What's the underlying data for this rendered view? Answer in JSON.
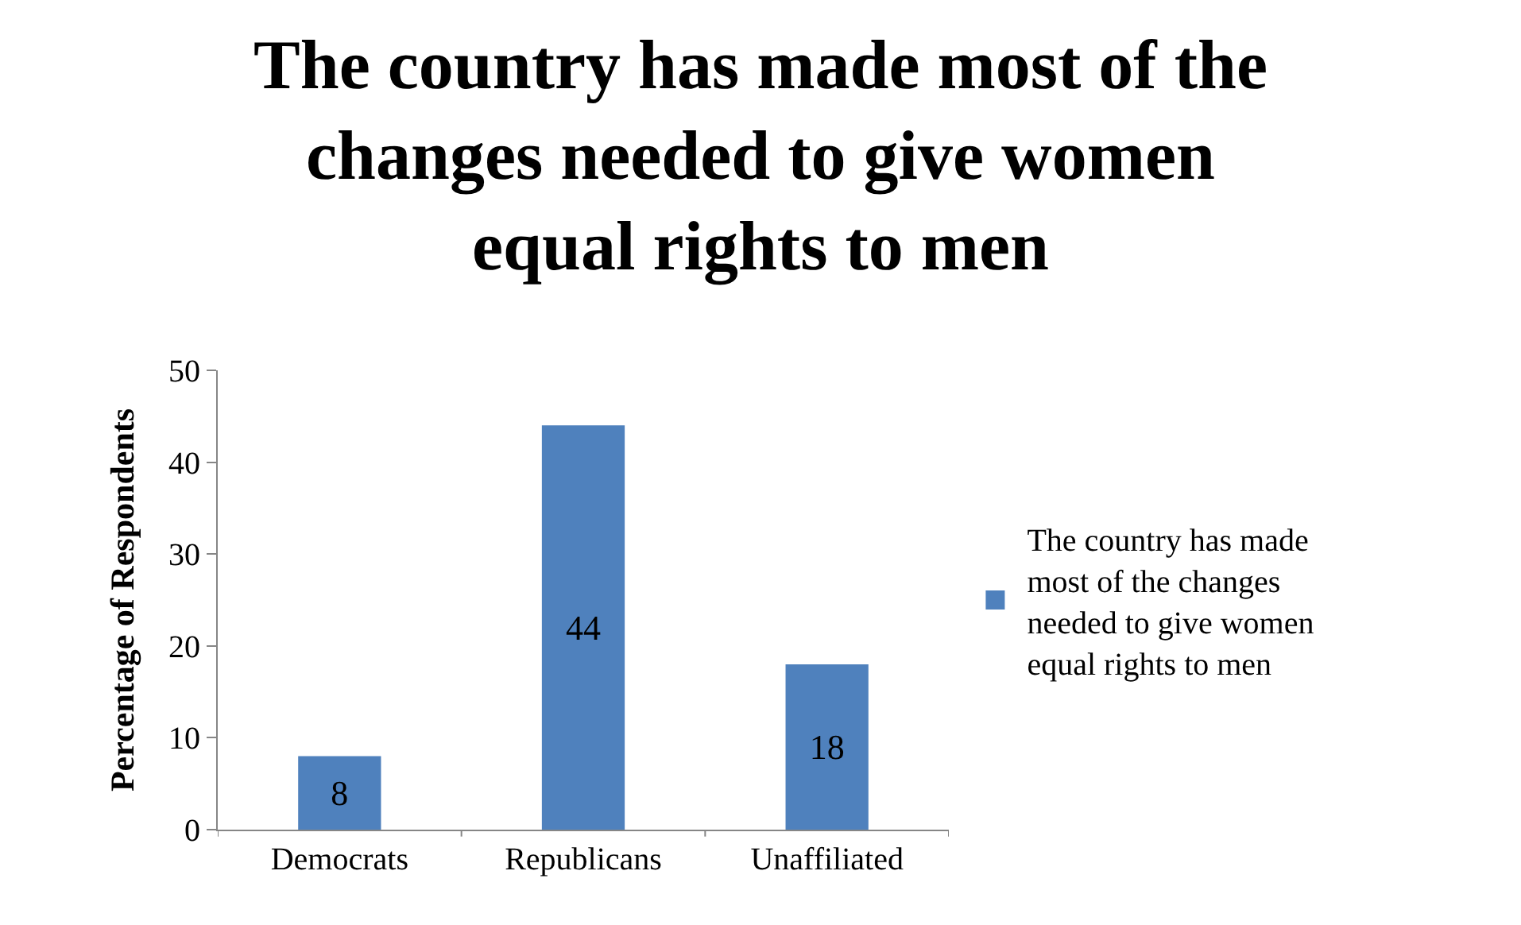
{
  "chart_data": {
    "type": "bar",
    "title": "The country has made most of the changes needed to give women equal rights to men",
    "ylabel": "Percentage of Respondents",
    "categories": [
      "Democrats",
      "Republicans",
      "Unaffiliated"
    ],
    "series": [
      {
        "name": "The country has made most of the changes needed to give women equal rights to men",
        "color": "#4f81bd",
        "values": [
          8,
          44,
          18
        ]
      }
    ],
    "ylim": [
      0,
      50
    ],
    "yticks": [
      0,
      10,
      20,
      30,
      40,
      50
    ],
    "legend": "right",
    "data_labels": true
  }
}
